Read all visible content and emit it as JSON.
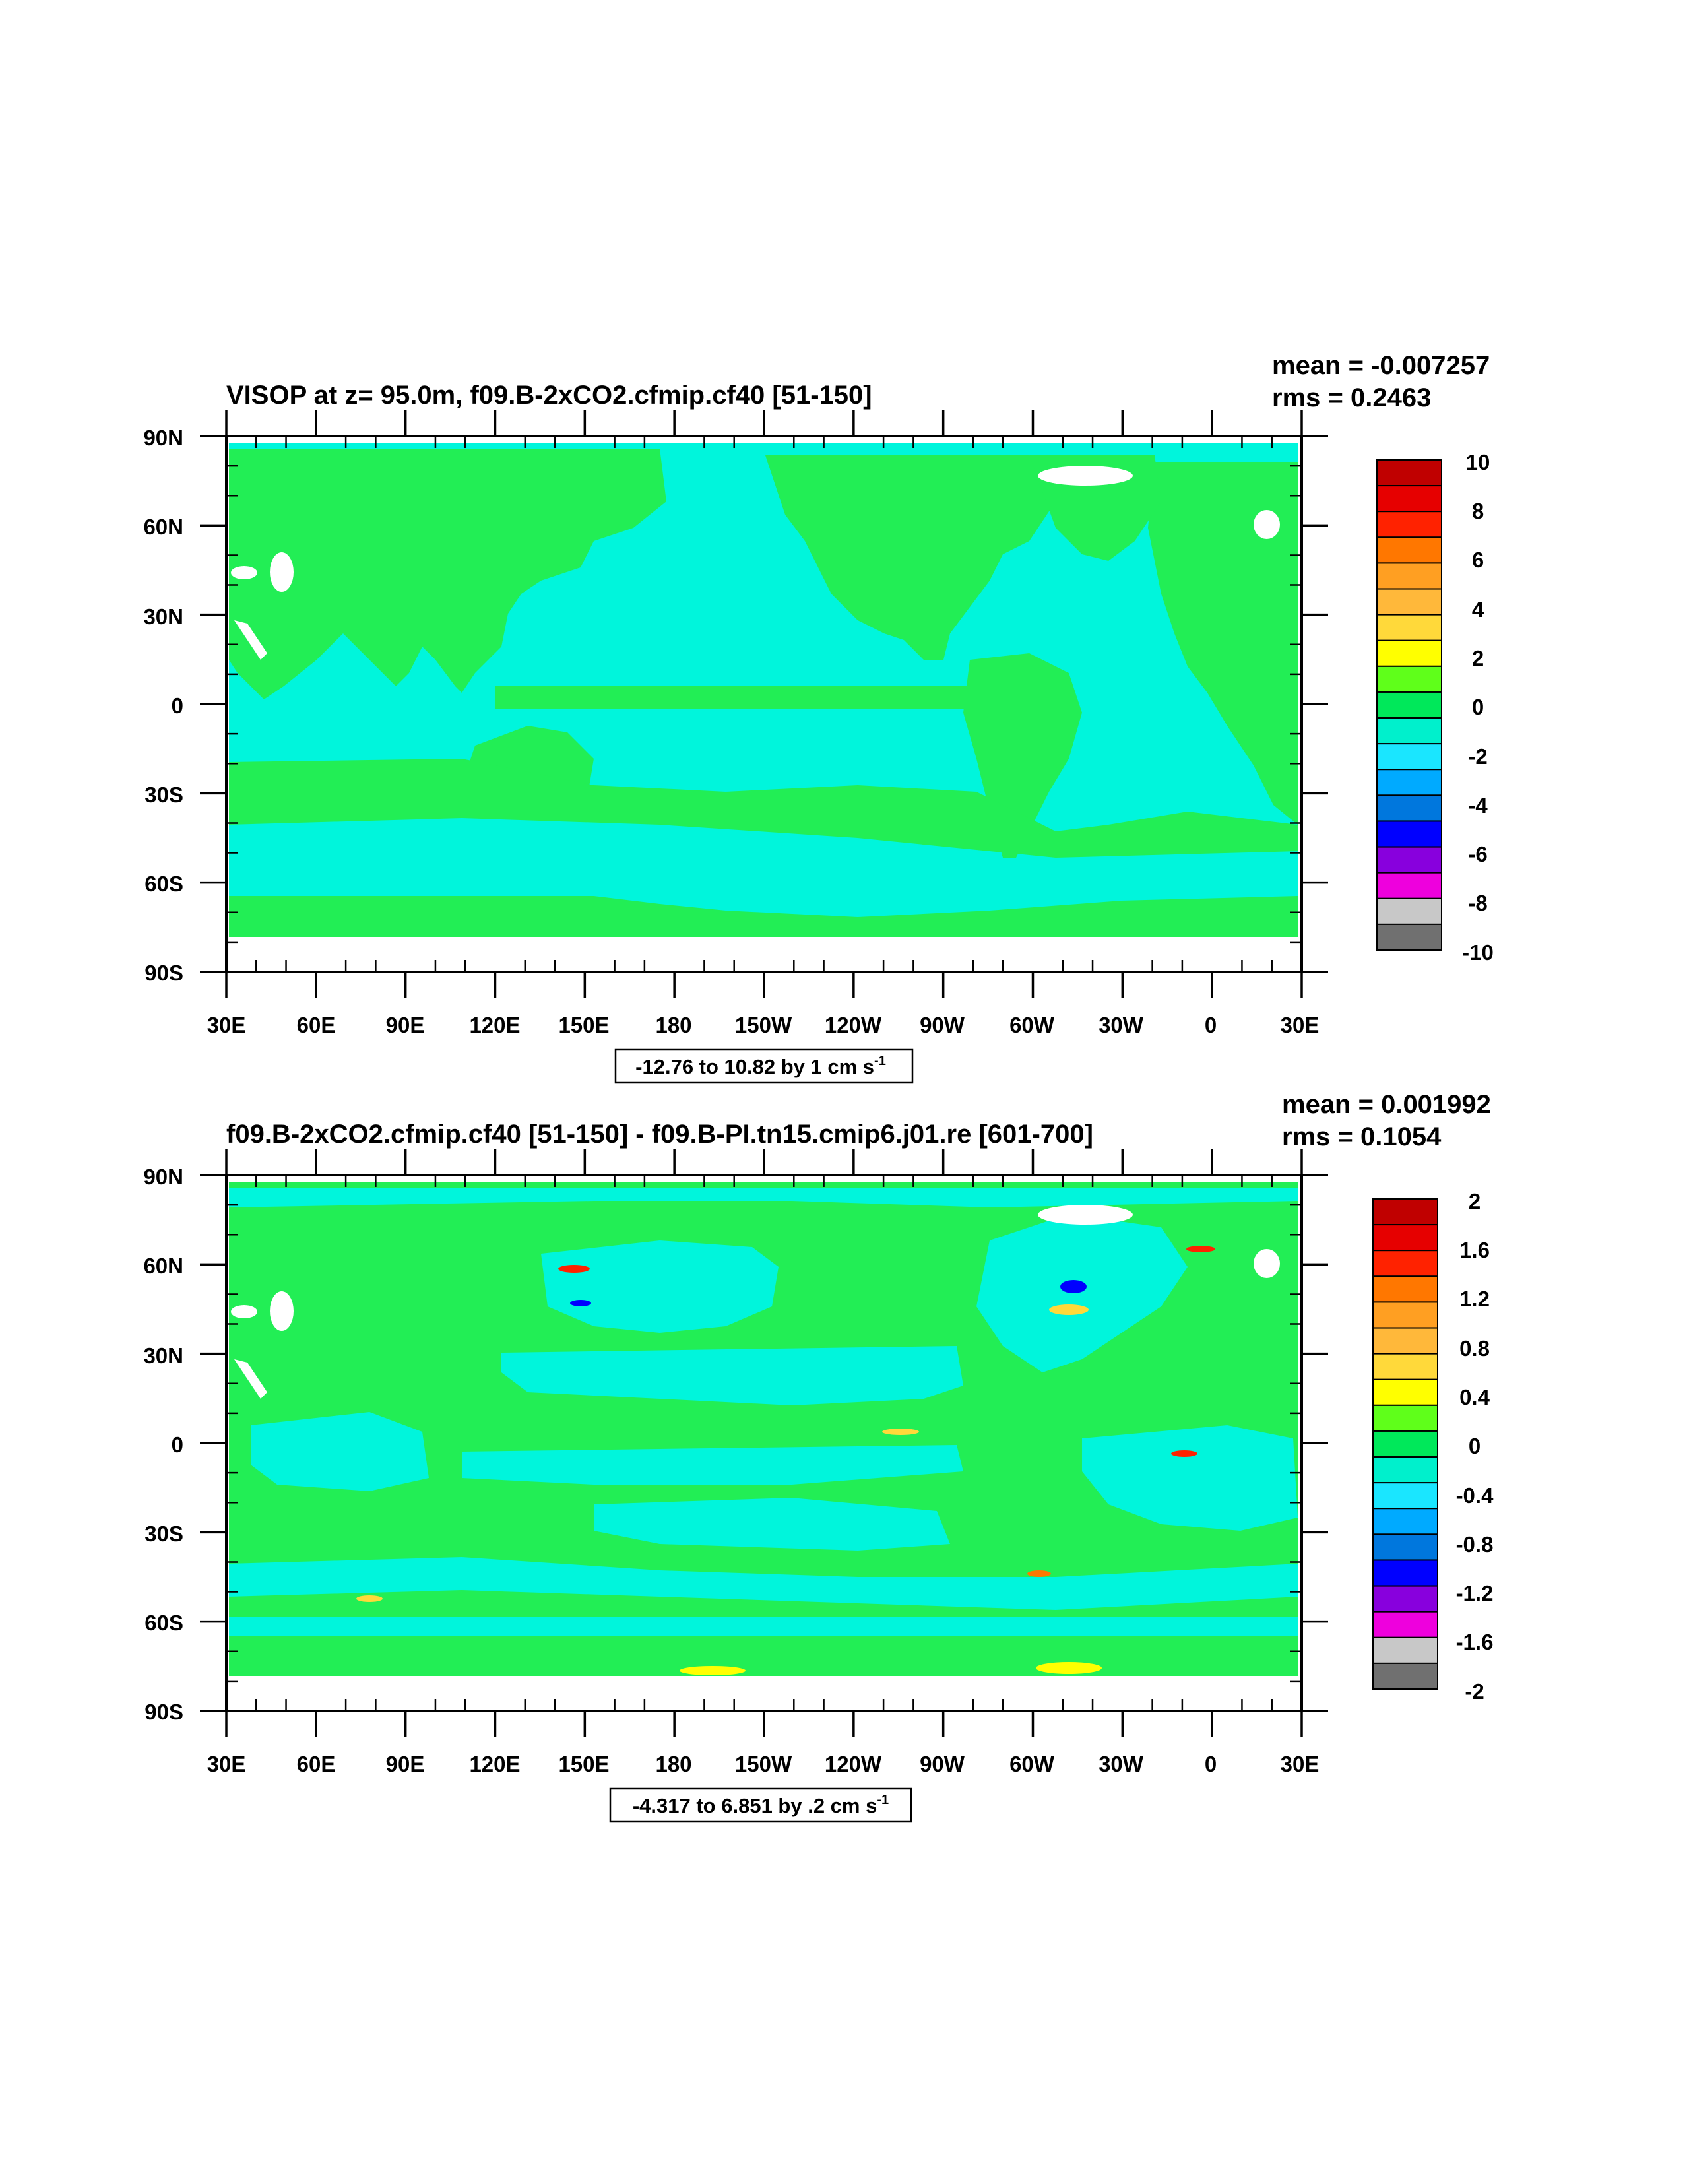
{
  "panels": [
    {
      "title": "VISOP at z=  95.0m, f09.B-2xCO2.cfmip.cf40 [51-150]",
      "stats": {
        "mean": "mean = -0.007257",
        "rms": "rms = 0.2463"
      },
      "range_label": "-12.76 to 10.82 by 1 cm s",
      "range_sup": "-1",
      "lat_labels": [
        "90N",
        "60N",
        "30N",
        "0",
        "30S",
        "60S",
        "90S"
      ],
      "lon_labels": [
        "30E",
        "60E",
        "90E",
        "120E",
        "150E",
        "180",
        "150W",
        "120W",
        "90W",
        "60W",
        "30W",
        "0",
        "30E"
      ],
      "colorbar": {
        "labels": [
          "10",
          "8",
          "6",
          "4",
          "2",
          "0",
          "-2",
          "-4",
          "-6",
          "-8",
          "-10"
        ],
        "colors": [
          "#c00000",
          "#e60000",
          "#ff2200",
          "#ff7700",
          "#ff9f22",
          "#ffb83a",
          "#ffd93a",
          "#ffff00",
          "#5fff1a",
          "#00e85a",
          "#00f0cc",
          "#1ae6ff",
          "#00aaff",
          "#0077dd",
          "#0000ff",
          "#8800dd",
          "#ee00dd",
          "#c8c8c8",
          "#707070"
        ]
      },
      "map": {
        "ocean_color": "#00f5dc",
        "land_color": "#22ee55"
      }
    },
    {
      "title": "f09.B-2xCO2.cfmip.cf40 [51-150] - f09.B-PI.tn15.cmip6.j01.re [601-700]",
      "stats": {
        "mean": "mean = 0.001992",
        "rms": "rms = 0.1054"
      },
      "range_label": "-4.317 to 6.851 by .2 cm s",
      "range_sup": "-1",
      "lat_labels": [
        "90N",
        "60N",
        "30N",
        "0",
        "30S",
        "60S",
        "90S"
      ],
      "lon_labels": [
        "30E",
        "60E",
        "90E",
        "120E",
        "150E",
        "180",
        "150W",
        "120W",
        "90W",
        "60W",
        "30W",
        "0",
        "30E"
      ],
      "colorbar": {
        "labels": [
          "2",
          "1.6",
          "1.2",
          "0.8",
          "0.4",
          "0",
          "-0.4",
          "-0.8",
          "-1.2",
          "-1.6",
          "-2"
        ],
        "colors": [
          "#c00000",
          "#e60000",
          "#ff2200",
          "#ff7700",
          "#ff9f22",
          "#ffb83a",
          "#ffd93a",
          "#ffff00",
          "#5fff1a",
          "#00e85a",
          "#00f0cc",
          "#1ae6ff",
          "#00aaff",
          "#0077dd",
          "#0000ff",
          "#8800dd",
          "#ee00dd",
          "#c8c8c8",
          "#707070"
        ]
      },
      "map": {
        "ocean_color": "#00f5dc",
        "land_color": "#22ee55"
      }
    }
  ]
}
